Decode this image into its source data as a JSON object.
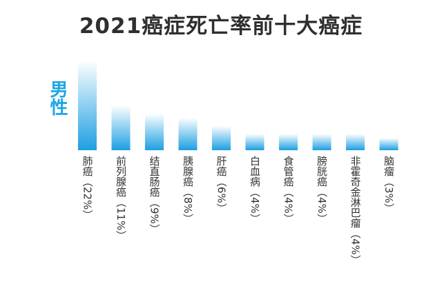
{
  "chart_data": {
    "type": "bar",
    "title": "2021癌症死亡率前十大癌症",
    "series": [
      {
        "name": "男性",
        "values": [
          22,
          11,
          9,
          8,
          6,
          4,
          4,
          4,
          4,
          3
        ]
      }
    ],
    "categories": [
      "肺癌（22%）",
      "前列腺癌（11%）",
      "结直肠癌（9%）",
      "胰腺癌（8%）",
      "肝癌（6%）",
      "白血病（4%）",
      "食管癌（4%）",
      "膀胱癌（4%）",
      "非霍奇金淋巴瘤（4%）",
      "脑瘤（3%）"
    ],
    "ylim": [
      0,
      22
    ],
    "grid": false,
    "legend": "left",
    "colors": {
      "bar_top": "#ffffff",
      "bar_bottom": "#1c9fe2",
      "title": "#2f2f2f",
      "series_label": "#1ca6e6"
    }
  }
}
